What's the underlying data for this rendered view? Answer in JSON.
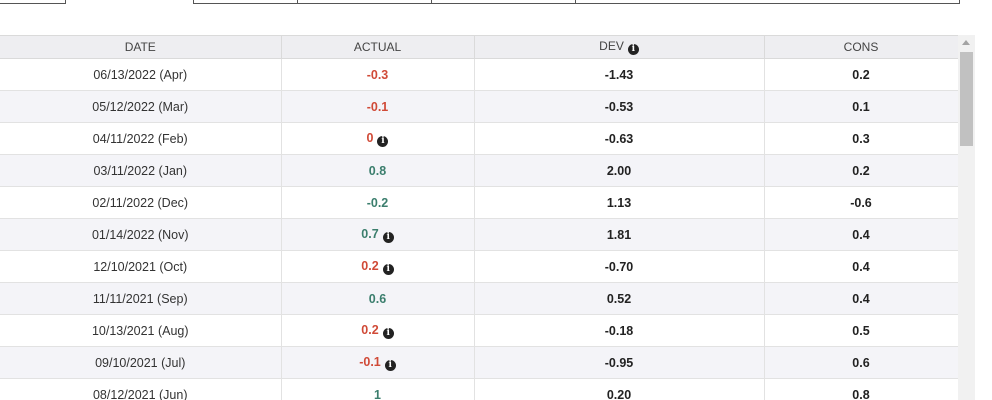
{
  "table": {
    "columns": [
      "DATE",
      "ACTUAL",
      "DEV",
      "CONS"
    ],
    "rows": [
      {
        "date": "06/13/2022 (Apr)",
        "actual": "-0.3",
        "actual_color": "neg",
        "actual_info": false,
        "dev": "-1.43",
        "cons": "0.2"
      },
      {
        "date": "05/12/2022 (Mar)",
        "actual": "-0.1",
        "actual_color": "neg",
        "actual_info": false,
        "dev": "-0.53",
        "cons": "0.1"
      },
      {
        "date": "04/11/2022 (Feb)",
        "actual": "0",
        "actual_color": "neg",
        "actual_info": true,
        "dev": "-0.63",
        "cons": "0.3"
      },
      {
        "date": "03/11/2022 (Jan)",
        "actual": "0.8",
        "actual_color": "pos",
        "actual_info": false,
        "dev": "2.00",
        "cons": "0.2"
      },
      {
        "date": "02/11/2022 (Dec)",
        "actual": "-0.2",
        "actual_color": "pos",
        "actual_info": false,
        "dev": "1.13",
        "cons": "-0.6"
      },
      {
        "date": "01/14/2022 (Nov)",
        "actual": "0.7",
        "actual_color": "pos",
        "actual_info": true,
        "dev": "1.81",
        "cons": "0.4"
      },
      {
        "date": "12/10/2021 (Oct)",
        "actual": "0.2",
        "actual_color": "neg",
        "actual_info": true,
        "dev": "-0.70",
        "cons": "0.4"
      },
      {
        "date": "11/11/2021 (Sep)",
        "actual": "0.6",
        "actual_color": "pos",
        "actual_info": false,
        "dev": "0.52",
        "cons": "0.4"
      },
      {
        "date": "10/13/2021 (Aug)",
        "actual": "0.2",
        "actual_color": "neg",
        "actual_info": true,
        "dev": "-0.18",
        "cons": "0.5"
      },
      {
        "date": "09/10/2021 (Jul)",
        "actual": "-0.1",
        "actual_color": "neg",
        "actual_info": true,
        "dev": "-0.95",
        "cons": "0.6"
      },
      {
        "date": "08/12/2021 (Jun)",
        "actual": "1",
        "actual_color": "pos",
        "actual_info": false,
        "dev": "0.20",
        "cons": "0.8"
      }
    ]
  },
  "icons": {
    "info": "info-icon",
    "scroll_up": "scroll-up-arrow-icon"
  },
  "colors": {
    "negative": "#d04a37",
    "positive": "#3b7e6d",
    "header_bg": "#eeeef1",
    "row_alt_bg": "#f4f4f8"
  }
}
